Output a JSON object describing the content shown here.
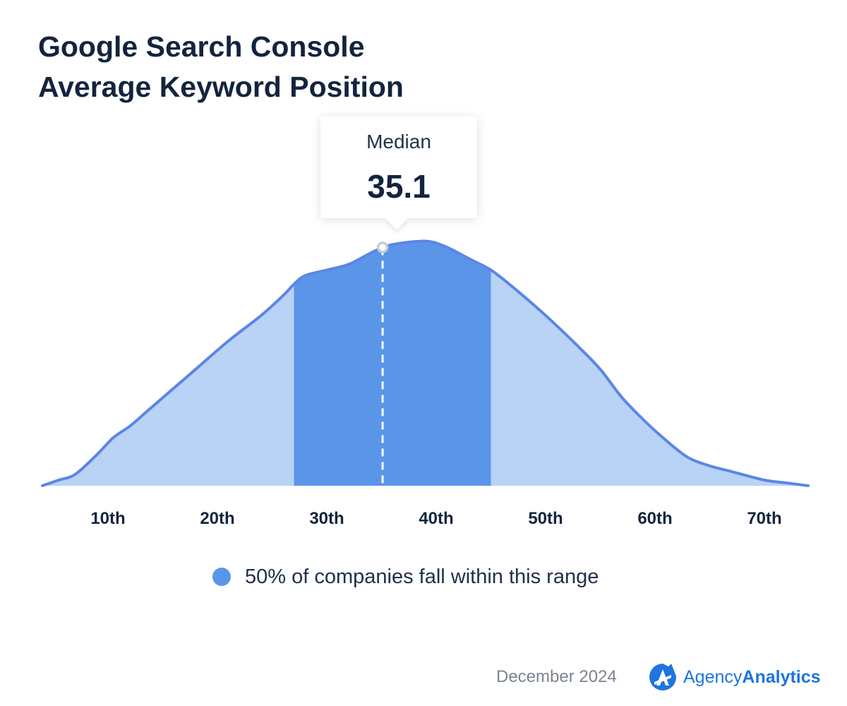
{
  "title": {
    "line1": "Google Search Console",
    "line2": "Average Keyword Position"
  },
  "median": {
    "label": "Median",
    "value": "35.1"
  },
  "legend": {
    "label": "50% of companies fall within this range"
  },
  "footer": {
    "date": "December 2024",
    "brand_light": "Agency",
    "brand_bold": "Analytics"
  },
  "colors": {
    "title": "#13243d",
    "curve_line": "#5b86e5",
    "outer_fill": "#b9d3f6",
    "range_fill": "#5a95e8",
    "median_line": "#ffffff",
    "brand": "#1f74df"
  },
  "chart_data": {
    "type": "area",
    "title": "Google Search Console Average Keyword Position",
    "xlabel": "",
    "ylabel": "",
    "xlim": [
      4,
      74
    ],
    "tick_values": [
      10,
      20,
      30,
      40,
      50,
      60,
      70
    ],
    "tick_labels": [
      "10th",
      "20th",
      "30th",
      "40th",
      "50th",
      "60th",
      "70th"
    ],
    "median": 35.1,
    "highlight_range": [
      27,
      45
    ],
    "curve": [
      [
        4,
        0.0
      ],
      [
        5.5,
        0.02
      ],
      [
        7,
        0.04
      ],
      [
        9,
        0.11
      ],
      [
        10.5,
        0.17
      ],
      [
        12,
        0.21
      ],
      [
        13.5,
        0.26
      ],
      [
        15,
        0.31
      ],
      [
        18,
        0.41
      ],
      [
        21,
        0.51
      ],
      [
        24,
        0.6
      ],
      [
        26,
        0.67
      ],
      [
        27,
        0.71
      ],
      [
        28,
        0.74
      ],
      [
        30,
        0.76
      ],
      [
        32,
        0.78
      ],
      [
        34,
        0.82
      ],
      [
        35.1,
        0.84
      ],
      [
        36,
        0.85
      ],
      [
        38,
        0.86
      ],
      [
        39.5,
        0.86
      ],
      [
        41,
        0.84
      ],
      [
        43,
        0.8
      ],
      [
        45,
        0.76
      ],
      [
        47,
        0.7
      ],
      [
        50,
        0.6
      ],
      [
        53,
        0.49
      ],
      [
        55,
        0.41
      ],
      [
        57,
        0.31
      ],
      [
        59,
        0.23
      ],
      [
        61,
        0.16
      ],
      [
        63,
        0.1
      ],
      [
        65,
        0.07
      ],
      [
        67,
        0.05
      ],
      [
        70,
        0.02
      ],
      [
        72,
        0.01
      ],
      [
        74,
        0.0
      ]
    ]
  }
}
